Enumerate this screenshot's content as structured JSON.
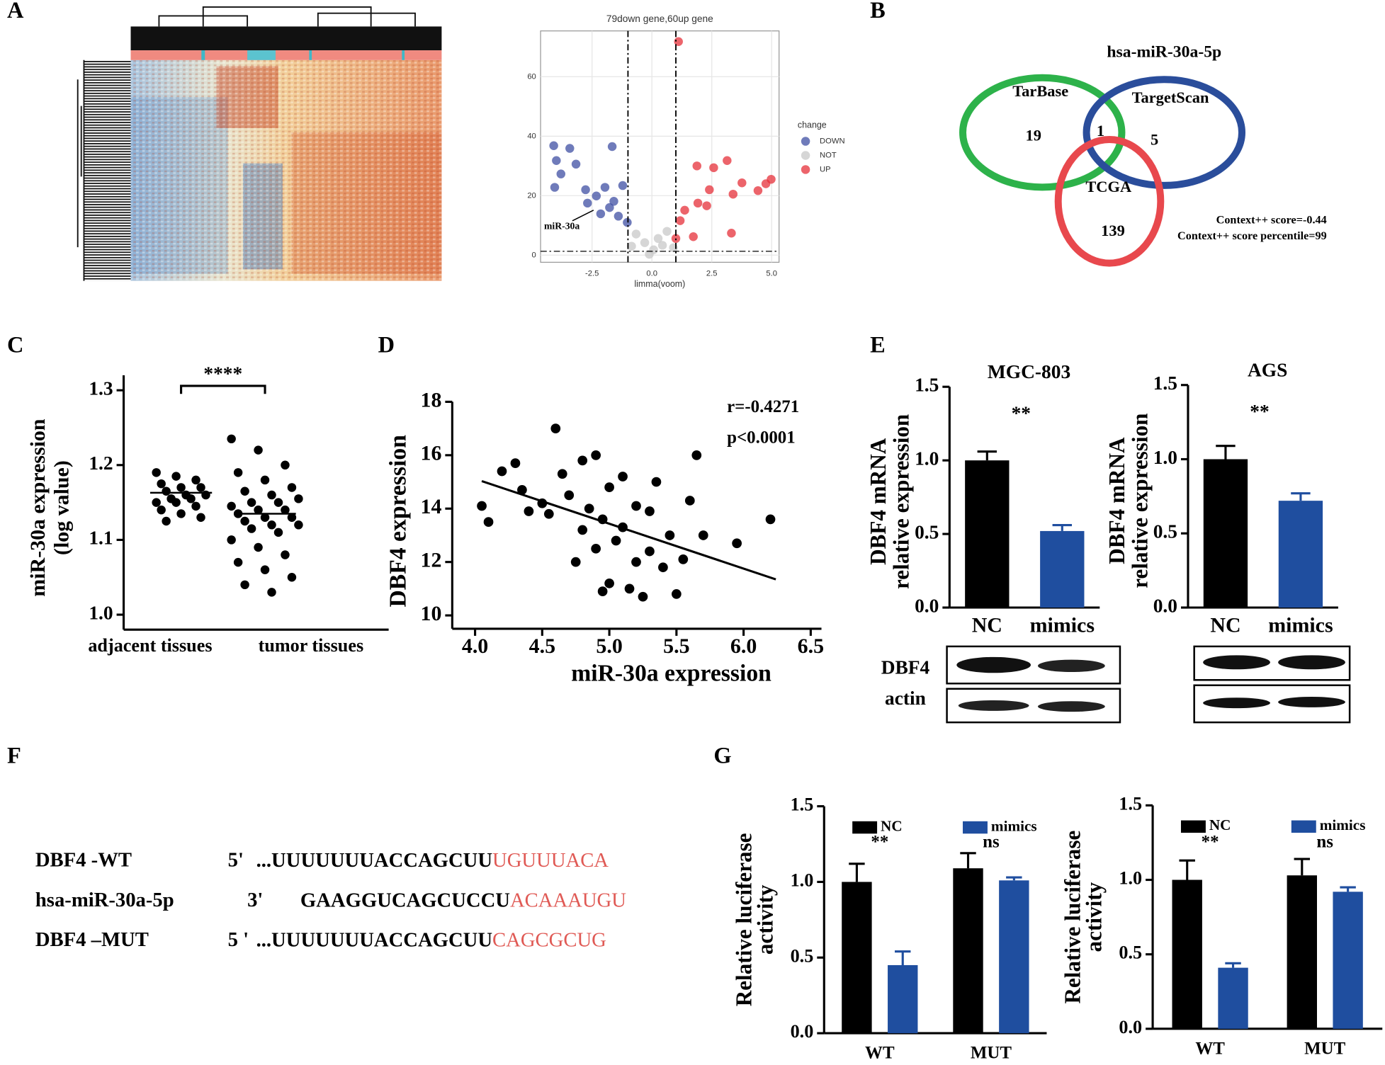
{
  "panels": [
    "A",
    "B",
    "C",
    "D",
    "E",
    "F",
    "G"
  ],
  "chart_data": [
    {
      "type": "scatter",
      "title": "79down gene,60up gene",
      "x_label": "limma(voom)",
      "xlim": [
        -4.65,
        5.31
      ],
      "ylim": [
        -2.4,
        75.4
      ],
      "xticks": [
        -2.5,
        {
          "value": 0,
          "label": "0.0"
        },
        2.5,
        {
          "value": 5,
          "label": "5.0"
        }
      ],
      "yticks": [
        0,
        20,
        40,
        60
      ],
      "grid": true,
      "thresholds": {
        "x": [
          -1,
          1
        ],
        "y": 1.3
      },
      "legend_title": "change",
      "annotation": "miR-30a",
      "series": [
        {
          "name": "DOWN",
          "color": "#3f4fa3",
          "x": [
            -4.1,
            -3.43,
            -1.66,
            -3.99,
            -3.17,
            -3.8,
            -4.06,
            -2.77,
            -2.32,
            -1.96,
            -1.22,
            -1.77,
            -1.4,
            -2.14,
            -1.03,
            -1.59,
            -2.69
          ],
          "y": [
            36.8,
            35.9,
            36.5,
            31.8,
            30.6,
            27.3,
            22.8,
            22.0,
            19.9,
            22.8,
            23.4,
            16.0,
            13.1,
            13.9,
            11.0,
            18.1,
            17.5
          ]
        },
        {
          "name": "NOT",
          "color": "#c8c8c8",
          "x": [
            0.07,
            -0.3,
            0.44,
            -0.66,
            0.63,
            -0.11,
            0.26,
            -0.85,
            0.9
          ],
          "y": [
            1.8,
            4.2,
            3.3,
            7.1,
            8.0,
            0.3,
            5.6,
            3.0,
            2.5
          ]
        },
        {
          "name": "UP",
          "color": "#e5303a",
          "x": [
            1.11,
            1.88,
            2.58,
            3.14,
            3.76,
            4.43,
            4.76,
            4.98,
            3.39,
            2.4,
            1.92,
            1.37,
            1.18,
            2.29,
            3.32,
            1.73,
            1.0
          ],
          "y": [
            71.8,
            30.0,
            29.4,
            31.8,
            24.3,
            21.7,
            24.0,
            25.5,
            20.5,
            22.0,
            17.5,
            15.1,
            11.6,
            16.6,
            7.4,
            6.2,
            5.6
          ]
        }
      ]
    },
    {
      "type": "venn",
      "title": "hsa-miR-30a-5p",
      "sets": [
        {
          "name": "TarBase",
          "color": "#2db24a"
        },
        {
          "name": "TargetScan",
          "color": "#2a4d9b"
        },
        {
          "name": "TCGA",
          "color": "#e8484d"
        }
      ],
      "counts": [
        19,
        1,
        5,
        139
      ],
      "notes": [
        "Context++ score=-0.44",
        "Context++ score percentile=99"
      ]
    },
    {
      "type": "strip",
      "y_label": [
        "miR-30a expression",
        "(log value)"
      ],
      "categories": [
        "adjacent tissues",
        "tumor tissues"
      ],
      "ylim": [
        0.98,
        1.32
      ],
      "yticks": [
        {
          "value": 1.0,
          "label": "1.0"
        },
        1.1,
        1.2,
        1.3
      ],
      "significance": "****",
      "means": [
        1.163,
        1.135
      ],
      "values": [
        [
          1.19,
          1.185,
          1.18,
          1.175,
          1.17,
          1.17,
          1.165,
          1.16,
          1.16,
          1.155,
          1.155,
          1.15,
          1.15,
          1.145,
          1.14,
          1.135,
          1.13,
          1.125
        ],
        [
          1.235,
          1.22,
          1.2,
          1.19,
          1.18,
          1.17,
          1.165,
          1.16,
          1.155,
          1.15,
          1.15,
          1.145,
          1.14,
          1.14,
          1.135,
          1.13,
          1.13,
          1.125,
          1.12,
          1.12,
          1.115,
          1.11,
          1.1,
          1.09,
          1.08,
          1.07,
          1.06,
          1.05,
          1.04,
          1.03
        ]
      ]
    },
    {
      "type": "scatter",
      "x_label": "miR-30a expression",
      "y_label": "DBF4 expression",
      "color": "#000000",
      "xlim": [
        3.83,
        6.58
      ],
      "ylim": [
        9.5,
        18
      ],
      "xticks": [
        {
          "value": 4,
          "label": "4.0"
        },
        4.5,
        {
          "value": 5,
          "label": "5.0"
        },
        5.5,
        {
          "value": 6,
          "label": "6.0"
        },
        6.5
      ],
      "yticks": [
        10,
        12,
        14,
        16,
        18
      ],
      "annotations": [
        "r=-0.4271",
        "p<0.0001"
      ],
      "fit": {
        "x": [
          4.05,
          6.24
        ],
        "y": [
          15.03,
          11.35
        ]
      },
      "x": [
        4.05,
        4.1,
        4.2,
        4.3,
        4.35,
        4.5,
        4.55,
        4.6,
        4.65,
        4.7,
        4.75,
        4.8,
        4.8,
        4.85,
        4.9,
        4.9,
        4.95,
        5.0,
        5.0,
        5.05,
        5.1,
        5.1,
        5.15,
        5.2,
        5.25,
        5.3,
        5.3,
        5.35,
        5.4,
        5.45,
        5.5,
        5.55,
        5.65,
        5.7,
        5.95,
        6.2,
        5.6,
        4.4,
        5.2,
        4.95
      ],
      "y": [
        14.1,
        13.5,
        15.4,
        15.7,
        14.7,
        14.2,
        13.8,
        17.0,
        15.3,
        14.5,
        12.0,
        13.2,
        15.8,
        14.0,
        12.5,
        16.0,
        13.6,
        11.2,
        14.8,
        12.8,
        13.3,
        15.2,
        11.0,
        14.1,
        10.7,
        12.4,
        13.9,
        15.0,
        11.8,
        13.0,
        10.8,
        12.1,
        16.0,
        13.0,
        12.7,
        13.6,
        14.3,
        13.9,
        12.0,
        10.9
      ]
    },
    {
      "type": "bar",
      "title": "MGC-803",
      "y_label": [
        "DBF4 mRNA",
        "relative expression"
      ],
      "categories": [
        "NC",
        "mimics"
      ],
      "values": [
        1.0,
        0.52
      ],
      "errors": [
        0.06,
        0.04
      ],
      "colors": [
        "#000000",
        "#1f4e9f"
      ],
      "ylim": [
        0,
        1.5
      ],
      "yticks": [
        {
          "value": 0,
          "label": "0.0"
        },
        {
          "value": 0.5,
          "label": "0.5"
        },
        {
          "value": 1,
          "label": "1.0"
        },
        {
          "value": 1.5,
          "label": "1.5"
        }
      ],
      "significance": "**",
      "blot_labels": [
        "DBF4",
        "actin"
      ]
    },
    {
      "type": "bar",
      "title": "AGS",
      "y_label": [
        "DBF4 mRNA",
        "relative expression"
      ],
      "categories": [
        "NC",
        "mimics"
      ],
      "values": [
        1.0,
        0.72
      ],
      "errors": [
        0.09,
        0.05
      ],
      "colors": [
        "#000000",
        "#1f4e9f"
      ],
      "ylim": [
        0,
        1.5
      ],
      "yticks": [
        {
          "value": 0,
          "label": "0.0"
        },
        {
          "value": 0.5,
          "label": "0.5"
        },
        {
          "value": 1,
          "label": "1.0"
        },
        {
          "value": 1.5,
          "label": "1.5"
        }
      ],
      "significance": "**"
    },
    {
      "type": "grouped_bar",
      "y_label": [
        "Relative luciferase",
        "activity"
      ],
      "categories": [
        "WT",
        "MUT"
      ],
      "significance": [
        "**",
        "ns"
      ],
      "ylim": [
        0,
        1.5
      ],
      "yticks": [
        {
          "value": 0,
          "label": "0.0"
        },
        {
          "value": 0.5,
          "label": "0.5"
        },
        {
          "value": 1,
          "label": "1.0"
        },
        {
          "value": 1.5,
          "label": "1.5"
        }
      ],
      "series": [
        {
          "name": "NC",
          "color": "#000000",
          "values": [
            1.0,
            1.09
          ],
          "errors": [
            0.12,
            0.1
          ]
        },
        {
          "name": "mimics",
          "color": "#1f4e9f",
          "values": [
            0.45,
            1.01
          ],
          "errors": [
            0.09,
            0.02
          ]
        }
      ]
    },
    {
      "type": "grouped_bar",
      "y_label": [
        "Relative luciferase",
        "activity"
      ],
      "categories": [
        "WT",
        "MUT"
      ],
      "significance": [
        "**",
        "ns"
      ],
      "ylim": [
        0,
        1.5
      ],
      "yticks": [
        {
          "value": 0,
          "label": "0.0"
        },
        {
          "value": 0.5,
          "label": "0.5"
        },
        {
          "value": 1,
          "label": "1.0"
        },
        {
          "value": 1.5,
          "label": "1.5"
        }
      ],
      "series": [
        {
          "name": "NC",
          "color": "#000000",
          "values": [
            1.0,
            1.03
          ],
          "errors": [
            0.13,
            0.11
          ]
        },
        {
          "name": "mimics",
          "color": "#1f4e9f",
          "values": [
            0.41,
            0.92
          ],
          "errors": [
            0.03,
            0.03
          ]
        }
      ]
    }
  ],
  "sequences": [
    {
      "label": "DBF4 -WT",
      "prime": "5'",
      "sequence": "...UUUUUUUACCAGCUU",
      "seed": "UGUUUACA"
    },
    {
      "label": "hsa-miR-30a-5p",
      "prime": "3'",
      "sequence": "GAAGGUCAGCUCCU",
      "seed": "ACAAAUGU"
    },
    {
      "label": "DBF4 –MUT",
      "prime": "5 '",
      "sequence": "...UUUUUUUACCAGCUU",
      "seed": "CAGCGCUG"
    }
  ]
}
